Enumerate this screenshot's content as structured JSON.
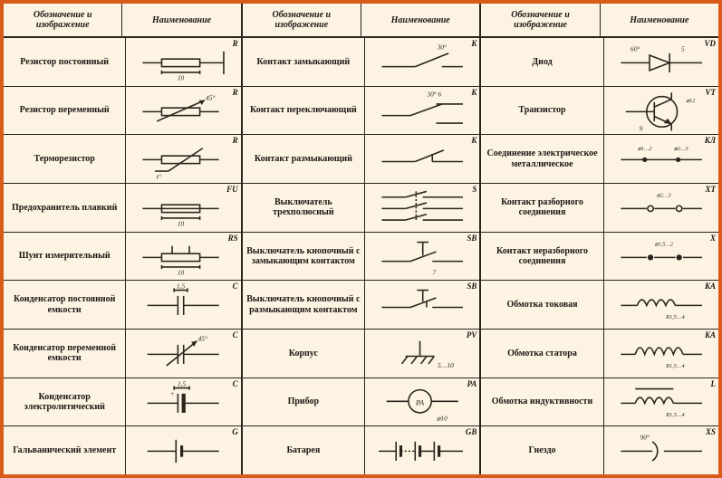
{
  "background_color": "#fdf3e3",
  "border_color": "#d95b1a",
  "line_color": "#2a241d",
  "text_color": "#1c1712",
  "header_labels": {
    "symbol_header": "Обозначение и изображение",
    "name_header": "Наименование"
  },
  "columns": [
    {
      "rows": [
        {
          "name": "Резистор постоянный",
          "code": "R",
          "dim": "10",
          "svg": "resistor"
        },
        {
          "name": "Резистор переменный",
          "code": "R",
          "dim": "45°",
          "svg": "var_resistor"
        },
        {
          "name": "Терморезистор",
          "code": "R",
          "dim": "t°",
          "svg": "thermistor"
        },
        {
          "name": "Предохранитель плавкий",
          "code": "FU",
          "dim": "10",
          "svg": "fuse"
        },
        {
          "name": "Шунт измерительный",
          "code": "RS",
          "dim": "10",
          "svg": "shunt"
        },
        {
          "name": "Конденсатор постоянной емкости",
          "code": "C",
          "dim": "1,5",
          "svg": "capacitor"
        },
        {
          "name": "Конденсатор переменной емкости",
          "code": "C",
          "dim": "45°",
          "svg": "var_capacitor"
        },
        {
          "name": "Конденсатор электролитический",
          "code": "C",
          "dim": "1,5",
          "svg": "elec_capacitor"
        },
        {
          "name": "Гальванический элемент",
          "code": "G",
          "dim": "",
          "svg": "cell"
        }
      ]
    },
    {
      "rows": [
        {
          "name": "Контакт замыкающий",
          "code": "K",
          "dim": "30°",
          "svg": "contact_no"
        },
        {
          "name": "Контакт переключающий",
          "code": "K",
          "dim": "30° 6",
          "svg": "contact_co"
        },
        {
          "name": "Контакт размыкающий",
          "code": "K",
          "dim": "",
          "svg": "contact_nc"
        },
        {
          "name": "Выключатель трехполюсный",
          "code": "S",
          "dim": "",
          "svg": "switch3"
        },
        {
          "name": "Выключатель кнопочный с замыкающим контактом",
          "code": "SB",
          "dim": "7",
          "svg": "button_no"
        },
        {
          "name": "Выключатель кнопочный с размыкающим контактом",
          "code": "SB",
          "dim": "",
          "svg": "button_nc"
        },
        {
          "name": "Корпус",
          "code": "PV",
          "dim": "5…10",
          "svg": "chassis"
        },
        {
          "name": "Прибор",
          "code": "PA",
          "dim": "⌀10",
          "svg": "meter"
        },
        {
          "name": "Батарея",
          "code": "GB",
          "dim": "",
          "svg": "battery"
        }
      ]
    },
    {
      "rows": [
        {
          "name": "Диод",
          "code": "VD",
          "dim": "60° 5",
          "svg": "diode"
        },
        {
          "name": "Транзистор",
          "code": "VT",
          "dim": "60° 9 ⌀12",
          "svg": "transistor"
        },
        {
          "name": "Соединение электрическое металлическое",
          "code": "КЛ",
          "dim": "⌀1…2  ⌀2…3",
          "svg": "junction"
        },
        {
          "name": "Контакт разборного соединения",
          "code": "XT",
          "dim": "⌀2…3",
          "svg": "plug_det"
        },
        {
          "name": "Контакт неразборного соединения",
          "code": "X",
          "dim": "⌀1,5…2",
          "svg": "plug_fixed"
        },
        {
          "name": "Обмотка токовая",
          "code": "KA",
          "dim": "R1,5…4",
          "svg": "coil_current"
        },
        {
          "name": "Обмотка статора",
          "code": "KA",
          "dim": "R1,5…4",
          "svg": "coil_stator"
        },
        {
          "name": "Обмотка индуктивности",
          "code": "L",
          "dim": "R1,5…4",
          "svg": "inductor"
        },
        {
          "name": "Гнездо",
          "code": "XS",
          "dim": "90°",
          "svg": "socket"
        }
      ]
    }
  ]
}
